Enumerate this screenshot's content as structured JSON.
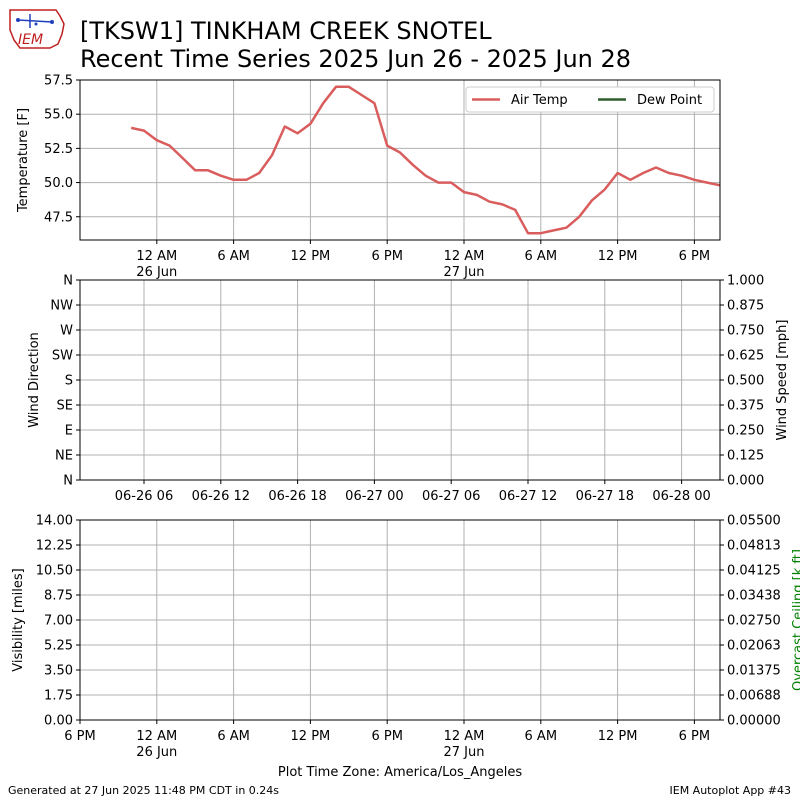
{
  "header": {
    "logo_text": "IEM",
    "title": "[TKSW1] TINKHAM CREEK SNOTEL",
    "subtitle": "Recent Time Series 2025 Jun 26 - 2025 Jun 28"
  },
  "footer": {
    "generated": "Generated at 27 Jun 2025 11:48 PM CDT in 0.24s",
    "app": "IEM Autoplot App #43"
  },
  "xcaption": "Plot Time Zone: America/Los_Angeles",
  "colors": {
    "air_temp": "#d95d5d",
    "dew_point": "#2e5e2e",
    "grid": "#b0b0b0",
    "ceiling_axis": "#008000"
  },
  "chart_data": [
    {
      "type": "line",
      "ylabel": "Temperature [F]",
      "ylim": [
        45.8,
        57.5
      ],
      "yticks": [
        "47.5",
        "50.0",
        "52.5",
        "55.0",
        "57.5"
      ],
      "xticks": [
        {
          "t": 6,
          "l1": "12 AM",
          "l2": "26 Jun"
        },
        {
          "t": 12,
          "l1": "6 AM",
          "l2": ""
        },
        {
          "t": 18,
          "l1": "12 PM",
          "l2": ""
        },
        {
          "t": 24,
          "l1": "6 PM",
          "l2": ""
        },
        {
          "t": 30,
          "l1": "12 AM",
          "l2": "27 Jun"
        },
        {
          "t": 36,
          "l1": "6 AM",
          "l2": ""
        },
        {
          "t": 42,
          "l1": "12 PM",
          "l2": ""
        },
        {
          "t": 48,
          "l1": "6 PM",
          "l2": ""
        }
      ],
      "xlim": [
        0,
        50
      ],
      "legend": {
        "placement": "top-right",
        "entries": [
          "Air Temp",
          "Dew Point"
        ]
      },
      "grid": true,
      "series": [
        {
          "name": "Air Temp",
          "x": [
            4,
            5,
            6,
            7,
            8,
            9,
            10,
            11,
            12,
            13,
            14,
            15,
            16,
            17,
            18,
            19,
            20,
            21,
            22,
            23,
            24,
            25,
            26,
            27,
            28,
            29,
            30,
            31,
            32,
            33,
            34,
            35,
            36,
            37,
            38,
            39,
            40,
            41,
            42,
            43,
            44,
            45,
            46,
            47,
            48,
            49,
            50
          ],
          "y": [
            54.0,
            53.8,
            53.1,
            52.7,
            51.8,
            50.9,
            50.9,
            50.5,
            50.2,
            50.2,
            50.7,
            52.0,
            54.1,
            53.6,
            54.3,
            55.8,
            57.0,
            57.0,
            56.4,
            55.8,
            52.7,
            52.2,
            51.3,
            50.5,
            50.0,
            50.0,
            49.3,
            49.1,
            48.6,
            48.4,
            48.0,
            46.3,
            46.3,
            46.5,
            46.7,
            47.5,
            48.7,
            49.5,
            50.7,
            50.2,
            50.7,
            51.1,
            50.7,
            50.5,
            50.2,
            50.0,
            49.8
          ]
        },
        {
          "name": "Dew Point",
          "x": [],
          "y": []
        }
      ]
    },
    {
      "type": "line",
      "ylabel": "Wind Direction",
      "ylabel_right": "Wind Speed [mph]",
      "yticks": [
        "N",
        "NE",
        "E",
        "SE",
        "S",
        "SW",
        "W",
        "NW",
        "N"
      ],
      "yticks_right": [
        "0.000",
        "0.125",
        "0.250",
        "0.375",
        "0.500",
        "0.625",
        "0.750",
        "0.875",
        "1.000"
      ],
      "ylim": [
        0,
        360
      ],
      "ylim_right": [
        0,
        1
      ],
      "xlim": [
        0,
        50
      ],
      "xticks": [
        {
          "t": 5,
          "l1": "06-26 06"
        },
        {
          "t": 11,
          "l1": "06-26 12"
        },
        {
          "t": 17,
          "l1": "06-26 18"
        },
        {
          "t": 23,
          "l1": "06-27 00"
        },
        {
          "t": 29,
          "l1": "06-27 06"
        },
        {
          "t": 35,
          "l1": "06-27 12"
        },
        {
          "t": 41,
          "l1": "06-27 18"
        },
        {
          "t": 47,
          "l1": "06-28 00"
        }
      ],
      "grid": true,
      "series": []
    },
    {
      "type": "line",
      "ylabel": "Visibility [miles]",
      "ylabel_right": "Overcast Ceiling [k ft]",
      "yticks": [
        "0.00",
        "1.75",
        "3.50",
        "5.25",
        "7.00",
        "8.75",
        "10.50",
        "12.25",
        "14.00"
      ],
      "yticks_right": [
        "0.00000",
        "0.00688",
        "0.01375",
        "0.02063",
        "0.02750",
        "0.03438",
        "0.04125",
        "0.04813",
        "0.05500"
      ],
      "ylim": [
        0,
        14
      ],
      "ylim_right": [
        0,
        0.055
      ],
      "xlim": [
        0,
        50
      ],
      "xticks": [
        {
          "t": 0,
          "l1": "6 PM",
          "l2": ""
        },
        {
          "t": 6,
          "l1": "12 AM",
          "l2": "26 Jun"
        },
        {
          "t": 12,
          "l1": "6 AM",
          "l2": ""
        },
        {
          "t": 18,
          "l1": "12 PM",
          "l2": ""
        },
        {
          "t": 24,
          "l1": "6 PM",
          "l2": ""
        },
        {
          "t": 30,
          "l1": "12 AM",
          "l2": "27 Jun"
        },
        {
          "t": 36,
          "l1": "6 AM",
          "l2": ""
        },
        {
          "t": 42,
          "l1": "12 PM",
          "l2": ""
        },
        {
          "t": 48,
          "l1": "6 PM",
          "l2": ""
        }
      ],
      "grid": true,
      "series": []
    }
  ]
}
